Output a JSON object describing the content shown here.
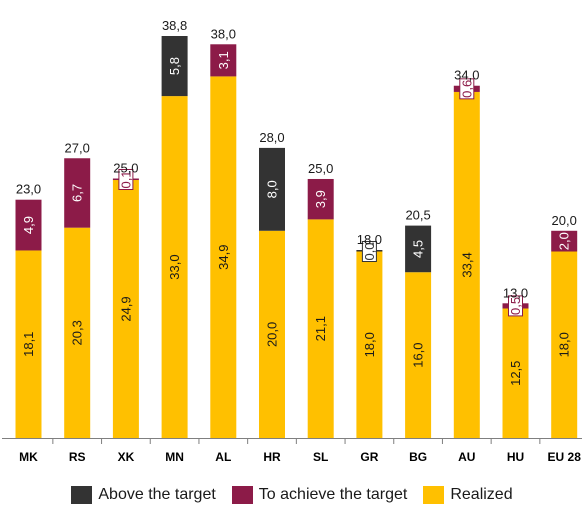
{
  "colors": {
    "above": "#333333",
    "achieve": "#8C1B48",
    "realized": "#FFC000"
  },
  "legend": {
    "above_label": "Above the target",
    "achieve_label": "To achieve the target",
    "realized_label": "Realized"
  },
  "chart_data": {
    "type": "bar",
    "stacked": true,
    "categories": [
      "MK",
      "RS",
      "XK",
      "MN",
      "AL",
      "HR",
      "SL",
      "GR",
      "BG",
      "AU",
      "HU",
      "EU 28"
    ],
    "series": [
      {
        "name": "Realized",
        "values": [
          18.1,
          20.3,
          24.9,
          33.0,
          34.9,
          20.0,
          21.1,
          18.0,
          16.0,
          33.4,
          12.5,
          18.0
        ],
        "labels": [
          "18,1",
          "20,3",
          "24,9",
          "33,0",
          "34,9",
          "20,0",
          "21,1",
          "18,0",
          "16,0",
          "33,4",
          "12,5",
          "18,0"
        ]
      },
      {
        "name": "To achieve the target",
        "values": [
          4.9,
          6.7,
          0.1,
          null,
          3.1,
          null,
          3.9,
          null,
          null,
          0.6,
          0.5,
          2.0
        ],
        "labels": [
          "4,9",
          "6,7",
          "0,1",
          "",
          "3,1",
          "",
          "3,9",
          "",
          "",
          "0,6",
          "0,5",
          "2,0"
        ]
      },
      {
        "name": "Above the target",
        "values": [
          null,
          null,
          null,
          5.8,
          null,
          8.0,
          null,
          0.0,
          4.5,
          null,
          null,
          null
        ],
        "labels": [
          "",
          "",
          "",
          "5,8",
          "",
          "8,0",
          "",
          "0,0",
          "4,5",
          "",
          "",
          ""
        ]
      }
    ],
    "totals": [
      23.0,
      27.0,
      25.0,
      38.8,
      38.0,
      28.0,
      25.0,
      18.0,
      20.5,
      34.0,
      13.0,
      20.0
    ],
    "total_labels": [
      "23,0",
      "27,0",
      "25,0",
      "38,8",
      "38,0",
      "28,0",
      "25,0",
      "18,0",
      "20,5",
      "34,0",
      "13,0",
      "20,0"
    ],
    "title": "",
    "xlabel": "",
    "ylabel": "",
    "ylim": [
      0,
      38.8
    ],
    "grid": false,
    "legend_position": "bottom"
  }
}
